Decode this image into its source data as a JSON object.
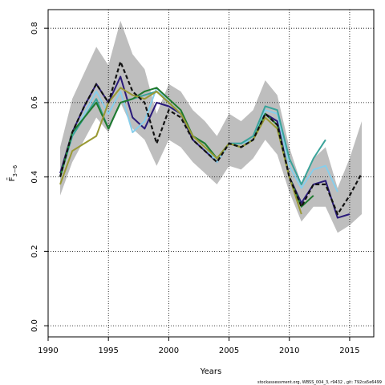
{
  "chart_data": {
    "type": "line",
    "xlabel": "Years",
    "ylabel": "F̄",
    "ylabel_sub": "3−6",
    "xlim": [
      1990,
      2017
    ],
    "ylim": [
      -0.03,
      0.85
    ],
    "x_ticks": [
      1990,
      1995,
      2000,
      2005,
      2010,
      2015
    ],
    "x_tick_labels": [
      "1990",
      "1995",
      "2000",
      "2005",
      "2010",
      "2015"
    ],
    "y_ticks": [
      0.0,
      0.2,
      0.4,
      0.6,
      0.8
    ],
    "y_tick_labels": [
      "0.0",
      "0.2",
      "0.4",
      "0.6",
      "0.8"
    ],
    "grid": true,
    "grid_style": "dotted",
    "footer": "stockassessment.org, WBSS_004_3, r9432 , git: 792ca5e6499",
    "band": {
      "color": "#bebebe",
      "x": [
        1991,
        1992,
        1993,
        1994,
        1995,
        1996,
        1997,
        1998,
        1999,
        2000,
        2001,
        2002,
        2003,
        2004,
        2005,
        2006,
        2007,
        2008,
        2009,
        2010,
        2011,
        2012,
        2013,
        2014,
        2015,
        2016
      ],
      "lower": [
        0.35,
        0.44,
        0.5,
        0.56,
        0.52,
        0.6,
        0.53,
        0.5,
        0.43,
        0.5,
        0.48,
        0.44,
        0.41,
        0.38,
        0.43,
        0.42,
        0.45,
        0.5,
        0.46,
        0.36,
        0.28,
        0.32,
        0.32,
        0.25,
        0.27,
        0.3
      ],
      "upper": [
        0.48,
        0.61,
        0.68,
        0.75,
        0.7,
        0.82,
        0.73,
        0.69,
        0.57,
        0.65,
        0.63,
        0.58,
        0.55,
        0.51,
        0.57,
        0.55,
        0.58,
        0.66,
        0.62,
        0.48,
        0.38,
        0.45,
        0.48,
        0.37,
        0.45,
        0.55
      ]
    },
    "series": [
      {
        "color": "#2a1a7a",
        "dash": "solid",
        "x": [
          1991,
          1992,
          1993,
          1994,
          1995,
          1996,
          1997,
          1998,
          1999,
          2000,
          2001,
          2002,
          2003,
          2004,
          2005,
          2006,
          2007,
          2008,
          2009,
          2010,
          2011,
          2012,
          2013,
          2014,
          2015
        ],
        "values": [
          0.41,
          0.52,
          0.59,
          0.65,
          0.6,
          0.67,
          0.56,
          0.53,
          0.6,
          0.59,
          0.57,
          0.5,
          0.47,
          0.44,
          0.49,
          0.49,
          0.5,
          0.57,
          0.55,
          0.4,
          0.33,
          0.38,
          0.39,
          0.29,
          0.3
        ]
      },
      {
        "color": "#87ceeb",
        "dash": "solid",
        "x": [
          1991,
          1992,
          1993,
          1994,
          1995,
          1996,
          1997,
          1998,
          1999,
          2000,
          2001,
          2002,
          2003,
          2004,
          2005,
          2006,
          2007,
          2008,
          2009,
          2010,
          2011,
          2012,
          2013,
          2014
        ],
        "values": [
          0.4,
          0.51,
          0.57,
          0.63,
          0.57,
          0.63,
          0.52,
          0.55,
          0.64,
          0.6,
          0.57,
          0.51,
          0.48,
          0.44,
          0.49,
          0.49,
          0.5,
          0.58,
          0.57,
          0.43,
          0.37,
          0.42,
          0.43,
          0.36
        ]
      },
      {
        "color": "#3aa39a",
        "dash": "solid",
        "x": [
          1991,
          1992,
          1993,
          1994,
          1995,
          1996,
          1997,
          1998,
          1999,
          2000,
          2001,
          2002,
          2003,
          2004,
          2005,
          2006,
          2007,
          2008,
          2009,
          2010,
          2011,
          2012,
          2013
        ],
        "values": [
          0.4,
          0.51,
          0.56,
          0.61,
          0.53,
          0.6,
          0.61,
          0.62,
          0.63,
          0.6,
          0.57,
          0.51,
          0.49,
          0.45,
          0.49,
          0.49,
          0.51,
          0.59,
          0.58,
          0.45,
          0.38,
          0.45,
          0.5
        ]
      },
      {
        "color": "#1f7a2e",
        "dash": "solid",
        "x": [
          1991,
          1992,
          1993,
          1994,
          1995,
          1996,
          1997,
          1998,
          1999,
          2000,
          2001,
          2002,
          2003,
          2004,
          2005,
          2006,
          2007,
          2008,
          2009,
          2010,
          2011,
          2012
        ],
        "values": [
          0.4,
          0.52,
          0.56,
          0.6,
          0.53,
          0.6,
          0.61,
          0.63,
          0.64,
          0.61,
          0.58,
          0.51,
          0.49,
          0.45,
          0.49,
          0.48,
          0.5,
          0.57,
          0.54,
          0.4,
          0.32,
          0.35
        ]
      },
      {
        "color": "#999933",
        "dash": "solid",
        "x": [
          1991,
          1992,
          1993,
          1994,
          1995,
          1996,
          1997,
          1998,
          1999,
          2000,
          2001,
          2002,
          2003,
          2004,
          2005,
          2006,
          2007,
          2008,
          2009,
          2010,
          2011
        ],
        "values": [
          0.38,
          0.47,
          0.49,
          0.51,
          0.6,
          0.64,
          0.62,
          0.61,
          0.63,
          0.6,
          0.57,
          0.51,
          0.48,
          0.45,
          0.49,
          0.48,
          0.5,
          0.56,
          0.53,
          0.4,
          0.3
        ]
      },
      {
        "color": "#111111",
        "dash": "dashed",
        "x": [
          1991,
          1992,
          1993,
          1994,
          1995,
          1996,
          1997,
          1998,
          1999,
          2000,
          2001,
          2002,
          2003,
          2004,
          2005,
          2006,
          2007,
          2008,
          2009,
          2010,
          2011,
          2012,
          2013,
          2014,
          2015,
          2016
        ],
        "values": [
          0.4,
          0.52,
          0.59,
          0.65,
          0.6,
          0.71,
          0.63,
          0.6,
          0.49,
          0.58,
          0.56,
          0.5,
          0.47,
          0.44,
          0.49,
          0.48,
          0.5,
          0.57,
          0.54,
          0.4,
          0.32,
          0.38,
          0.38,
          0.3,
          0.35,
          0.41
        ]
      }
    ]
  }
}
